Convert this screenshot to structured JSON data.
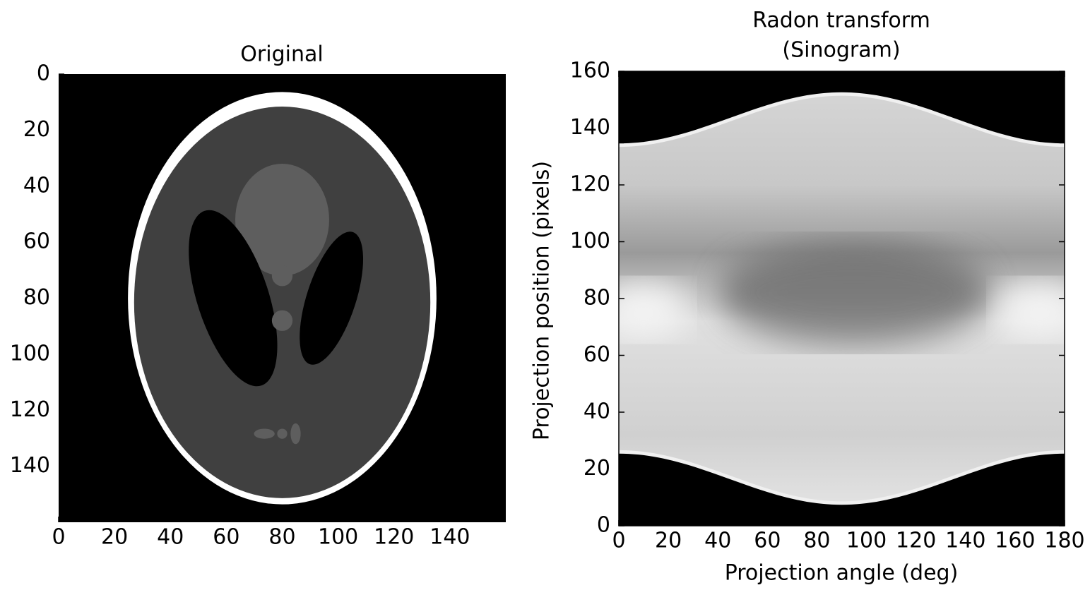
{
  "chart_data": [
    {
      "type": "image",
      "title": "Original",
      "xlim": [
        0,
        160
      ],
      "ylim": [
        160,
        0
      ],
      "xticks": [
        0,
        20,
        40,
        60,
        80,
        100,
        120,
        140
      ],
      "yticks": [
        0,
        20,
        40,
        60,
        80,
        100,
        120,
        140
      ],
      "frame": false
    },
    {
      "type": "image",
      "title": [
        "Radon transform",
        "(Sinogram)"
      ],
      "x_label": "Projection angle (deg)",
      "y_label": "Projection position (pixels)",
      "xlim": [
        0,
        180
      ],
      "ylim": [
        0,
        160
      ],
      "xticks": [
        0,
        20,
        40,
        60,
        80,
        100,
        120,
        140,
        160,
        180
      ],
      "yticks": [
        0,
        20,
        40,
        60,
        80,
        100,
        120,
        140,
        160
      ],
      "frame": true
    }
  ]
}
